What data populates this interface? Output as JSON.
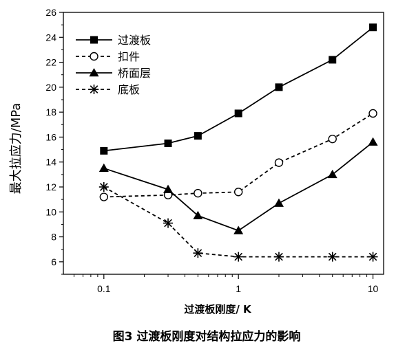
{
  "chart_data": {
    "type": "line",
    "title": "",
    "caption": "图3  过渡板刚度对结构拉应力的影响",
    "xlabel": "过渡板刚度/ K",
    "ylabel": "最大拉应力/MPa",
    "x_scale": "log",
    "xlim": [
      0.05,
      12
    ],
    "ylim": [
      5,
      26
    ],
    "x_ticks": [
      0.1,
      1,
      10
    ],
    "x_tick_labels": [
      "0.1",
      "1",
      "10"
    ],
    "y_ticks": [
      6,
      8,
      10,
      12,
      14,
      16,
      18,
      20,
      22,
      24,
      26
    ],
    "y_tick_labels": [
      "6",
      "8",
      "10",
      "12",
      "14",
      "16",
      "18",
      "20",
      "22",
      "24",
      "26"
    ],
    "legend_position": "top-left",
    "x": [
      0.1,
      0.3,
      0.5,
      1,
      2,
      5,
      10
    ],
    "series": [
      {
        "name": "过渡板",
        "marker": "filled-square",
        "line": "solid",
        "values": [
          14.9,
          15.5,
          16.1,
          17.9,
          20.0,
          22.2,
          24.8
        ]
      },
      {
        "name": "扣件",
        "marker": "open-circle",
        "line": "dashed",
        "values": [
          11.2,
          11.35,
          11.5,
          11.6,
          13.95,
          15.85,
          17.9
        ]
      },
      {
        "name": "桥面层",
        "marker": "filled-triangle",
        "line": "solid",
        "values": [
          13.5,
          11.8,
          9.7,
          8.5,
          10.7,
          13.0,
          15.6
        ]
      },
      {
        "name": "底板",
        "marker": "asterisk",
        "line": "dashed",
        "values": [
          12.0,
          9.1,
          6.7,
          6.4,
          6.4,
          6.4,
          6.4
        ]
      }
    ]
  }
}
